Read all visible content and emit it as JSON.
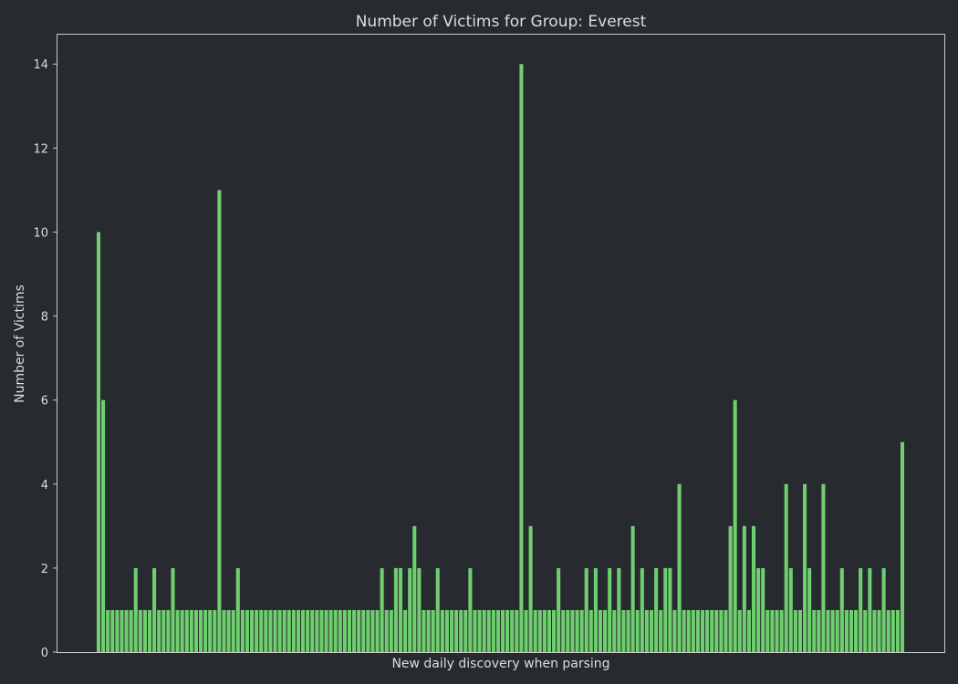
{
  "colors": {
    "background": "#272a2e",
    "bar": "#6fcf6f",
    "text": "#dcdcdc",
    "axis": "#cccccc"
  },
  "chart_data": {
    "type": "bar",
    "title": "Number of Victims for Group: Everest",
    "xlabel": "New daily discovery when parsing",
    "ylabel": "Number of Victims",
    "ylim": [
      0,
      14.7
    ],
    "yticks": [
      0,
      2,
      4,
      6,
      8,
      10,
      12,
      14
    ],
    "grid": false,
    "legend": "none",
    "series": [
      {
        "values": [
          10,
          6,
          1,
          1,
          1,
          1,
          1,
          1,
          2,
          1,
          1,
          1,
          2,
          1,
          1,
          1,
          2,
          1,
          1,
          1,
          1,
          1,
          1,
          1,
          1,
          1,
          11,
          1,
          1,
          1,
          2,
          1,
          1,
          1,
          1,
          1,
          1,
          1,
          1,
          1,
          1,
          1,
          1,
          1,
          1,
          1,
          1,
          1,
          1,
          1,
          1,
          1,
          1,
          1,
          1,
          1,
          1,
          1,
          1,
          1,
          1,
          2,
          1,
          1,
          2,
          2,
          1,
          2,
          3,
          2,
          1,
          1,
          1,
          2,
          1,
          1,
          1,
          1,
          1,
          1,
          2,
          1,
          1,
          1,
          1,
          1,
          1,
          1,
          1,
          1,
          1,
          14,
          1,
          3,
          1,
          1,
          1,
          1,
          1,
          2,
          1,
          1,
          1,
          1,
          1,
          2,
          1,
          2,
          1,
          1,
          2,
          1,
          2,
          1,
          1,
          3,
          1,
          2,
          1,
          1,
          2,
          1,
          2,
          2,
          1,
          4,
          1,
          1,
          1,
          1,
          1,
          1,
          1,
          1,
          1,
          1,
          3,
          6,
          1,
          3,
          1,
          3,
          2,
          2,
          1,
          1,
          1,
          1,
          4,
          2,
          1,
          1,
          4,
          2,
          1,
          1,
          4,
          1,
          1,
          1,
          2,
          1,
          1,
          1,
          2,
          1,
          2,
          1,
          1,
          2,
          1,
          1,
          1,
          5
        ]
      }
    ]
  }
}
